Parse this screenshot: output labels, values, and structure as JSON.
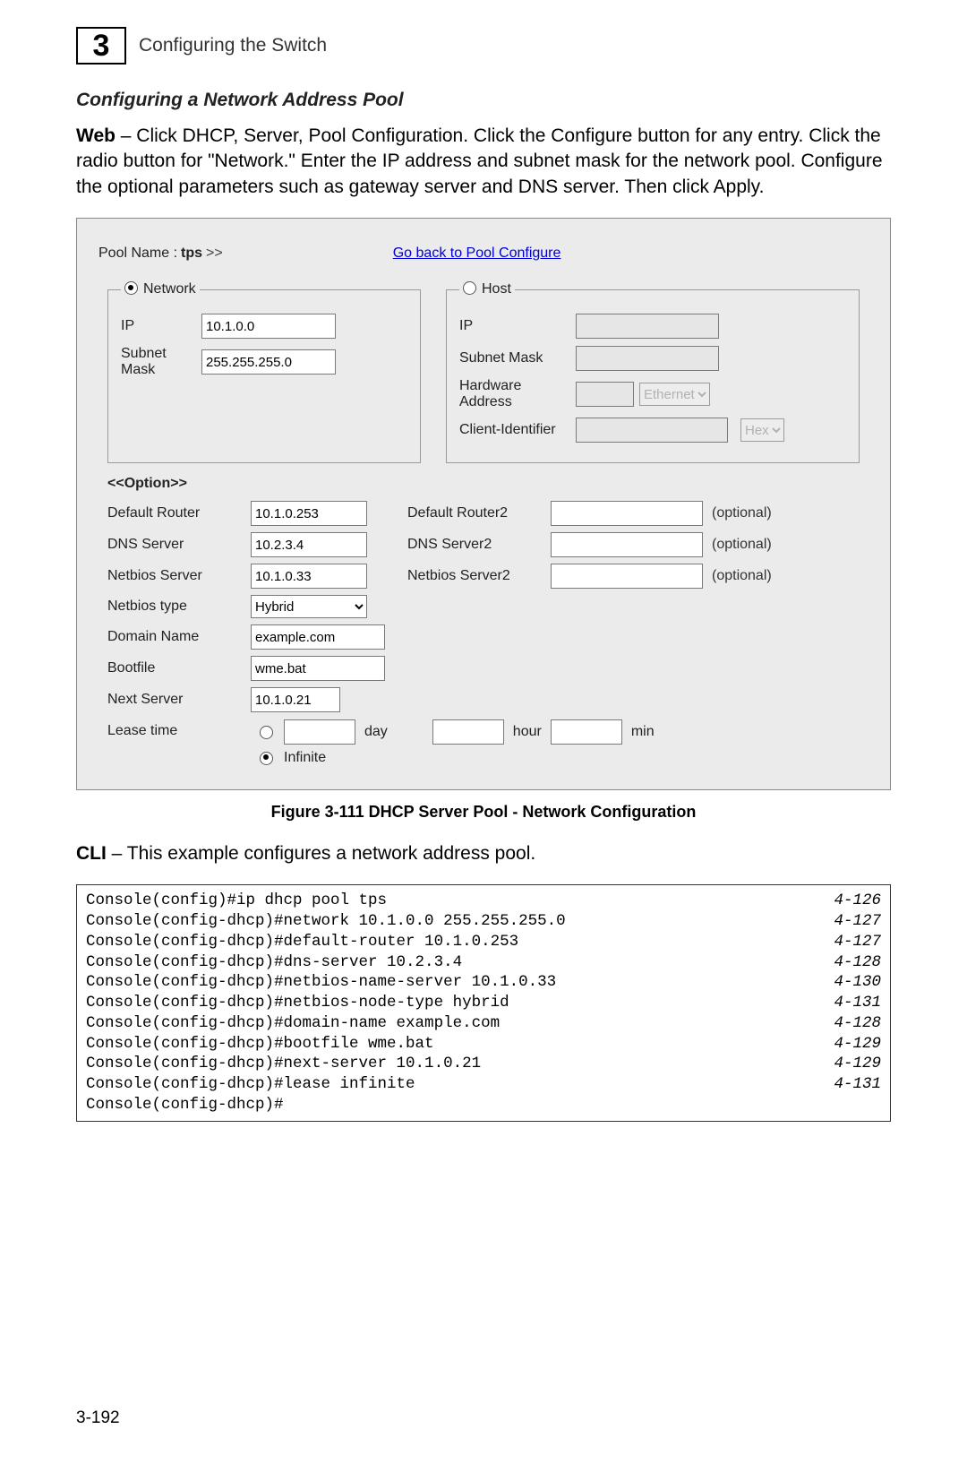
{
  "header": {
    "chapter_number": "3",
    "chapter_title": "Configuring the Switch"
  },
  "section_title": "Configuring a Network Address Pool",
  "web_paragraph_bold": "Web",
  "web_paragraph_rest": " – Click DHCP, Server, Pool Configuration. Click the Configure button for any entry. Click the radio button for \"Network.\" Enter the IP address and subnet mask for the network pool. Configure the optional parameters such as gateway server and DNS server. Then click Apply.",
  "screenshot": {
    "pool_name_label": "Pool Name :",
    "pool_name_value": "tps",
    "chevrons": ">>",
    "go_back": "Go back to Pool Configure",
    "network_group": {
      "legend": "Network",
      "radio_checked": true,
      "ip_label": "IP",
      "ip_value": "10.1.0.0",
      "subnet_label": "Subnet Mask",
      "subnet_value": "255.255.255.0"
    },
    "host_group": {
      "legend": "Host",
      "radio_checked": false,
      "ip_label": "IP",
      "subnet_label": "Subnet Mask",
      "hw_label": "Hardware Address",
      "hw_type": "Ethernet",
      "client_id_label": "Client-Identifier",
      "client_id_type": "Hex"
    },
    "option_header": "<<Option>>",
    "options": {
      "default_router_label": "Default Router",
      "default_router_value": "10.1.0.253",
      "default_router2_label": "Default Router2",
      "dns_server_label": "DNS Server",
      "dns_server_value": "10.2.3.4",
      "dns_server2_label": "DNS Server2",
      "netbios_server_label": "Netbios Server",
      "netbios_server_value": "10.1.0.33",
      "netbios_server2_label": "Netbios Server2",
      "optional_text": "(optional)",
      "netbios_type_label": "Netbios type",
      "netbios_type_value": "Hybrid",
      "domain_name_label": "Domain Name",
      "domain_name_value": "example.com",
      "bootfile_label": "Bootfile",
      "bootfile_value": "wme.bat",
      "next_server_label": "Next Server",
      "next_server_value": "10.1.0.21",
      "lease_label": "Lease time",
      "lease_day_unit": "day",
      "lease_hour_unit": "hour",
      "lease_min_unit": "min",
      "lease_infinite": "Infinite"
    }
  },
  "figure_caption": "Figure 3-111   DHCP Server Pool - Network Configuration",
  "cli_bold": "CLI",
  "cli_rest": " – This example configures a network address pool.",
  "cli_lines": [
    {
      "cmd": "Console(config)#ip dhcp pool tps",
      "ref": "4-126"
    },
    {
      "cmd": "Console(config-dhcp)#network 10.1.0.0 255.255.255.0",
      "ref": "4-127"
    },
    {
      "cmd": "Console(config-dhcp)#default-router 10.1.0.253",
      "ref": "4-127"
    },
    {
      "cmd": "Console(config-dhcp)#dns-server 10.2.3.4",
      "ref": "4-128"
    },
    {
      "cmd": "Console(config-dhcp)#netbios-name-server 10.1.0.33",
      "ref": "4-130"
    },
    {
      "cmd": "Console(config-dhcp)#netbios-node-type hybrid",
      "ref": "4-131"
    },
    {
      "cmd": "Console(config-dhcp)#domain-name example.com",
      "ref": "4-128"
    },
    {
      "cmd": "Console(config-dhcp)#bootfile wme.bat",
      "ref": "4-129"
    },
    {
      "cmd": "Console(config-dhcp)#next-server 10.1.0.21",
      "ref": "4-129"
    },
    {
      "cmd": "Console(config-dhcp)#lease infinite",
      "ref": "4-131"
    },
    {
      "cmd": "Console(config-dhcp)#",
      "ref": ""
    }
  ],
  "page_number": "3-192"
}
